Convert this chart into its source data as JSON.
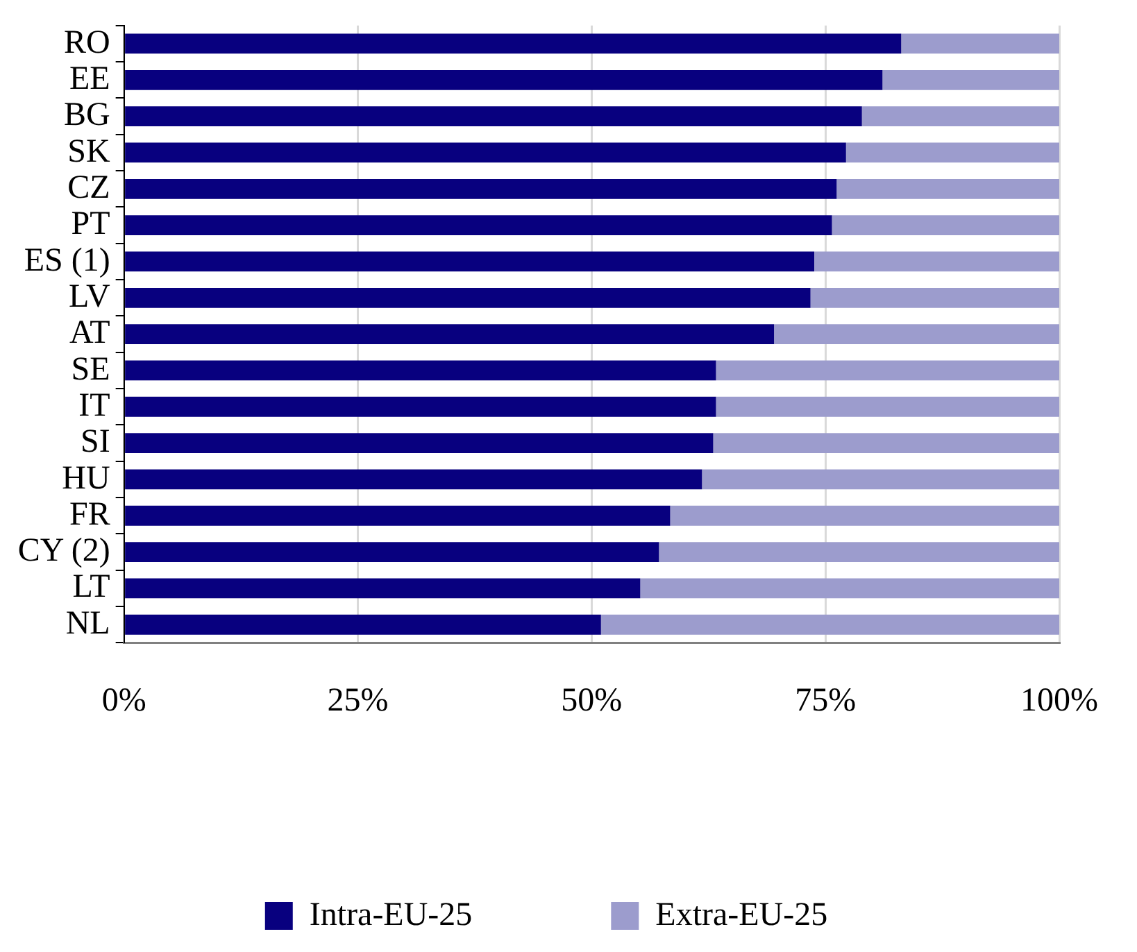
{
  "chart_data": {
    "type": "bar",
    "orientation": "horizontal",
    "stacked": true,
    "categories": [
      "RO",
      "EE",
      "BG",
      "SK",
      "CZ",
      "PT",
      "ES (1)",
      "LV",
      "AT",
      "SE",
      "IT",
      "SI",
      "HU",
      "FR",
      "CY (2)",
      "LT",
      "NL"
    ],
    "series": [
      {
        "name": "Intra-EU-25",
        "color": "#08007f",
        "values": [
          83.1,
          81.1,
          78.9,
          77.2,
          76.2,
          75.7,
          73.8,
          73.4,
          69.5,
          63.3,
          63.3,
          63.0,
          61.8,
          58.4,
          57.2,
          55.2,
          51.0
        ]
      },
      {
        "name": "Extra-EU-25",
        "color": "#9c9ccd",
        "values": [
          16.9,
          18.9,
          21.1,
          22.8,
          23.8,
          24.3,
          26.2,
          26.6,
          30.5,
          36.7,
          36.7,
          37.0,
          38.2,
          41.6,
          42.8,
          44.8,
          49.0
        ]
      }
    ],
    "xlim": [
      0,
      100
    ],
    "xticks": [
      {
        "value": 0,
        "label": "0%"
      },
      {
        "value": 25,
        "label": "25%"
      },
      {
        "value": 50,
        "label": "50%"
      },
      {
        "value": 75,
        "label": "75%"
      },
      {
        "value": 100,
        "label": "100%"
      }
    ],
    "grid": "x",
    "legend": "bottom"
  }
}
